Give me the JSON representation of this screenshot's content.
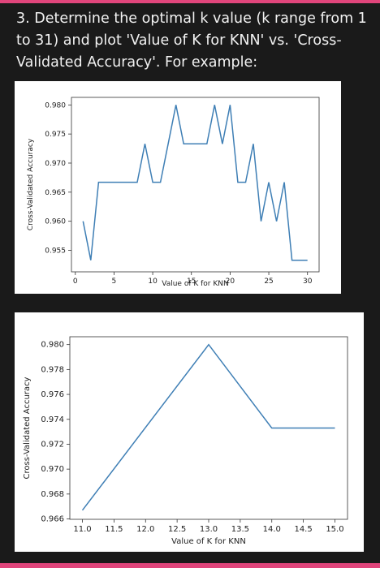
{
  "question": {
    "text": "3. Determine the optimal k value (k range from 1 to 31) and plot 'Value of K for KNN' vs. 'Cross-Validated Accuracy'. For example:"
  },
  "colors": {
    "line": "#3f7fb5",
    "background": "#1a1a1a",
    "accent": "#e0457b",
    "panel": "#ffffff"
  },
  "chart_data": [
    {
      "type": "line",
      "xlabel": "Value of K for KNN",
      "ylabel": "Cross-Validated Accuracy",
      "xlim": [
        -0.5,
        31.5
      ],
      "ylim": [
        0.9513,
        0.9813
      ],
      "xticks": [
        0,
        5,
        10,
        15,
        20,
        25,
        30
      ],
      "yticks": [
        0.955,
        0.96,
        0.965,
        0.97,
        0.975,
        0.98
      ],
      "x": [
        1,
        2,
        3,
        4,
        5,
        6,
        7,
        8,
        9,
        10,
        11,
        12,
        13,
        14,
        15,
        16,
        17,
        18,
        19,
        20,
        21,
        22,
        23,
        24,
        25,
        26,
        27,
        28,
        29,
        30
      ],
      "y": [
        0.96,
        0.9533,
        0.9667,
        0.9667,
        0.9667,
        0.9667,
        0.9667,
        0.9667,
        0.9733,
        0.9667,
        0.9667,
        0.9733,
        0.98,
        0.9733,
        0.9733,
        0.9733,
        0.9733,
        0.98,
        0.9733,
        0.98,
        0.9667,
        0.9667,
        0.9733,
        0.96,
        0.9667,
        0.96,
        0.9667,
        0.9533,
        0.9533,
        0.9533
      ],
      "grid": false
    },
    {
      "type": "line",
      "xlabel": "Value of K for KNN",
      "ylabel": "Cross-Validated Accuracy",
      "xlim": [
        10.8,
        15.2
      ],
      "ylim": [
        0.96597,
        0.98063
      ],
      "xticks": [
        11.0,
        11.5,
        12.0,
        12.5,
        13.0,
        13.5,
        14.0,
        14.5,
        15.0
      ],
      "yticks": [
        0.966,
        0.968,
        0.97,
        0.972,
        0.974,
        0.976,
        0.978,
        0.98
      ],
      "x": [
        11,
        13,
        14,
        15
      ],
      "y": [
        0.9667,
        0.98,
        0.9733,
        0.9733
      ],
      "grid": false
    }
  ]
}
